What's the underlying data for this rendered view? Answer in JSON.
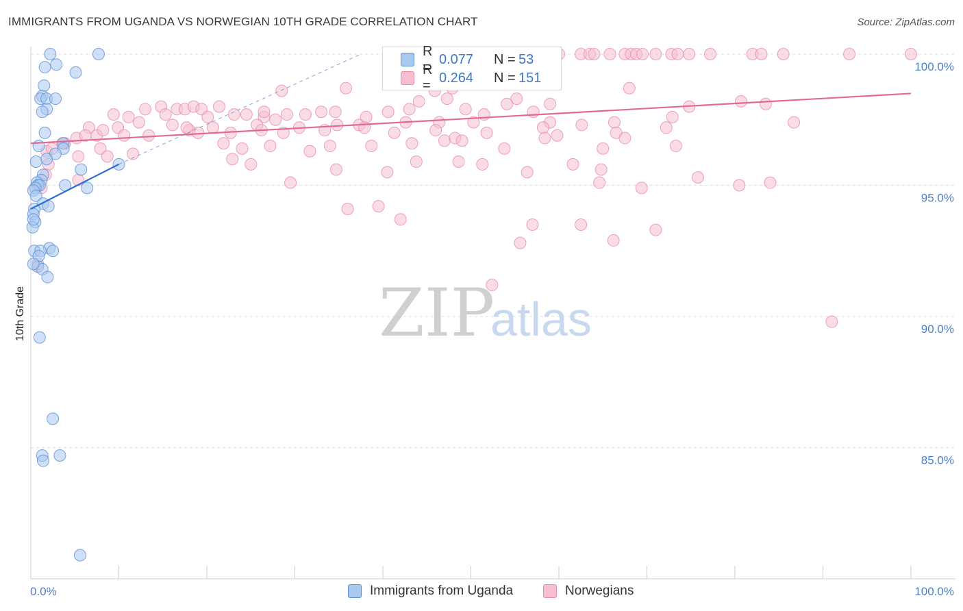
{
  "title": "IMMIGRANTS FROM UGANDA VS NORWEGIAN 10TH GRADE CORRELATION CHART",
  "source": "Source: ZipAtlas.com",
  "watermark": {
    "zip": "ZIP",
    "atlas": "atlas"
  },
  "colors": {
    "uganda_fill": "#a9c8f0",
    "uganda_stroke": "#5b8fd4",
    "uganda_line": "#2a6fd0",
    "norway_fill": "#f6bfd0",
    "norway_stroke": "#e88aaa",
    "norway_line": "#e06a95",
    "tick_text": "#4a7fc9",
    "grid": "#dddddd"
  },
  "legend": {
    "uganda": {
      "r_label": "R = ",
      "r_value": "0.077",
      "n_label": "N = ",
      "n_value": "53"
    },
    "norway": {
      "r_label": "R = ",
      "r_value": "0.264",
      "n_label": "N = ",
      "n_value": "151"
    }
  },
  "bottom_legend": {
    "uganda": "Immigrants from Uganda",
    "norway": "Norwegians"
  },
  "chart_data": {
    "type": "scatter",
    "title": "IMMIGRANTS FROM UGANDA VS NORWEGIAN 10TH GRADE CORRELATION CHART",
    "xlabel": "",
    "ylabel": "10th Grade",
    "xlim": [
      0,
      100
    ],
    "ylim": [
      80.6,
      100.8
    ],
    "x_tick_labels": [
      "0.0%",
      "100.0%"
    ],
    "y_ticks": [
      {
        "value": 100,
        "label": "100.0%"
      },
      {
        "value": 95,
        "label": "95.0%"
      },
      {
        "value": 90,
        "label": "90.0%"
      },
      {
        "value": 85,
        "label": "85.0%"
      }
    ],
    "series": [
      {
        "name": "Immigrants from Uganda",
        "r": 0.077,
        "n": 53,
        "trend": {
          "x": [
            0,
            10
          ],
          "y": [
            94.1,
            95.8
          ]
        },
        "trend_dashed": {
          "x": [
            10,
            37.5
          ],
          "y": [
            95.8,
            100.0
          ]
        },
        "points": [
          [
            2.2,
            100.0
          ],
          [
            7.7,
            100.0
          ],
          [
            2.9,
            99.6
          ],
          [
            1.6,
            99.5
          ],
          [
            5.1,
            99.3
          ],
          [
            1.5,
            98.8
          ],
          [
            1.3,
            98.4
          ],
          [
            1.1,
            98.3
          ],
          [
            1.8,
            98.3
          ],
          [
            2.8,
            98.3
          ],
          [
            1.8,
            97.9
          ],
          [
            1.3,
            97.8
          ],
          [
            1.6,
            97.0
          ],
          [
            3.7,
            96.6
          ],
          [
            3.7,
            96.4
          ],
          [
            0.9,
            96.5
          ],
          [
            2.8,
            96.2
          ],
          [
            1.8,
            96.0
          ],
          [
            0.6,
            95.9
          ],
          [
            5.7,
            95.6
          ],
          [
            1.4,
            95.4
          ],
          [
            10.0,
            95.8
          ],
          [
            1.2,
            95.2
          ],
          [
            0.7,
            95.1
          ],
          [
            0.8,
            95.0
          ],
          [
            1.0,
            95.0
          ],
          [
            0.5,
            94.9
          ],
          [
            0.3,
            94.8
          ],
          [
            3.9,
            95.0
          ],
          [
            6.4,
            94.9
          ],
          [
            0.6,
            94.6
          ],
          [
            1.4,
            94.3
          ],
          [
            2.0,
            94.2
          ],
          [
            0.4,
            94.1
          ],
          [
            0.3,
            93.9
          ],
          [
            0.5,
            93.6
          ],
          [
            0.2,
            93.4
          ],
          [
            0.3,
            93.7
          ],
          [
            2.1,
            92.6
          ],
          [
            0.4,
            92.5
          ],
          [
            1.1,
            92.5
          ],
          [
            0.9,
            92.3
          ],
          [
            2.5,
            92.5
          ],
          [
            0.8,
            91.9
          ],
          [
            1.3,
            91.8
          ],
          [
            1.9,
            91.5
          ],
          [
            1.0,
            89.2
          ],
          [
            2.5,
            86.1
          ],
          [
            1.3,
            84.7
          ],
          [
            1.4,
            84.5
          ],
          [
            3.3,
            84.7
          ],
          [
            5.6,
            80.9
          ],
          [
            0.3,
            92.0
          ]
        ]
      },
      {
        "name": "Norwegians",
        "r": 0.264,
        "n": 151,
        "trend": {
          "x": [
            0,
            100
          ],
          "y": [
            96.6,
            98.5
          ]
        },
        "points": [
          [
            60.0,
            100.0
          ],
          [
            62.5,
            100.0
          ],
          [
            63.5,
            100.0
          ],
          [
            64.0,
            100.0
          ],
          [
            65.8,
            100.0
          ],
          [
            67.5,
            100.0
          ],
          [
            68.2,
            100.0
          ],
          [
            68.8,
            100.0
          ],
          [
            69.5,
            100.0
          ],
          [
            71.0,
            100.0
          ],
          [
            72.8,
            100.0
          ],
          [
            73.5,
            100.0
          ],
          [
            74.8,
            100.0
          ],
          [
            77.2,
            100.0
          ],
          [
            82.0,
            100.0
          ],
          [
            83.0,
            100.0
          ],
          [
            85.5,
            100.0
          ],
          [
            93.0,
            100.0
          ],
          [
            100.0,
            100.0
          ],
          [
            57.7,
            99.1
          ],
          [
            28.5,
            98.6
          ],
          [
            35.8,
            98.7
          ],
          [
            47.9,
            98.7
          ],
          [
            68.0,
            98.7
          ],
          [
            45.9,
            98.6
          ],
          [
            47.3,
            98.3
          ],
          [
            44.1,
            98.2
          ],
          [
            55.2,
            98.3
          ],
          [
            80.7,
            98.2
          ],
          [
            59.0,
            98.1
          ],
          [
            14.8,
            98.0
          ],
          [
            13.0,
            97.9
          ],
          [
            16.6,
            97.9
          ],
          [
            21.4,
            98.0
          ],
          [
            17.5,
            97.9
          ],
          [
            18.5,
            98.0
          ],
          [
            19.4,
            97.9
          ],
          [
            23.1,
            97.7
          ],
          [
            26.5,
            97.6
          ],
          [
            31.2,
            97.7
          ],
          [
            33.0,
            97.8
          ],
          [
            34.6,
            97.8
          ],
          [
            40.6,
            97.8
          ],
          [
            43.0,
            97.9
          ],
          [
            49.4,
            97.9
          ],
          [
            51.5,
            97.7
          ],
          [
            54.1,
            98.1
          ],
          [
            57.1,
            97.8
          ],
          [
            74.8,
            98.0
          ],
          [
            83.5,
            98.1
          ],
          [
            9.4,
            97.7
          ],
          [
            11.1,
            97.6
          ],
          [
            12.3,
            97.4
          ],
          [
            15.3,
            97.7
          ],
          [
            20.1,
            97.6
          ],
          [
            24.5,
            97.7
          ],
          [
            25.7,
            97.3
          ],
          [
            27.8,
            97.5
          ],
          [
            29.1,
            97.7
          ],
          [
            34.8,
            97.3
          ],
          [
            37.3,
            97.3
          ],
          [
            38.1,
            97.6
          ],
          [
            42.6,
            97.4
          ],
          [
            46.4,
            97.4
          ],
          [
            50.3,
            97.4
          ],
          [
            59.0,
            97.4
          ],
          [
            62.6,
            97.3
          ],
          [
            66.3,
            97.4
          ],
          [
            72.9,
            97.6
          ],
          [
            86.7,
            97.4
          ],
          [
            6.6,
            97.2
          ],
          [
            7.5,
            96.9
          ],
          [
            8.2,
            97.1
          ],
          [
            9.9,
            97.2
          ],
          [
            16.1,
            97.3
          ],
          [
            18.0,
            97.1
          ],
          [
            20.7,
            97.2
          ],
          [
            22.7,
            97.0
          ],
          [
            26.2,
            97.1
          ],
          [
            28.7,
            97.0
          ],
          [
            33.4,
            97.1
          ],
          [
            37.9,
            97.2
          ],
          [
            41.3,
            97.0
          ],
          [
            46.0,
            97.1
          ],
          [
            48.2,
            96.8
          ],
          [
            51.8,
            97.0
          ],
          [
            58.2,
            97.2
          ],
          [
            59.8,
            96.9
          ],
          [
            66.5,
            97.0
          ],
          [
            72.2,
            97.2
          ],
          [
            3.9,
            96.6
          ],
          [
            5.2,
            96.8
          ],
          [
            6.2,
            96.9
          ],
          [
            7.9,
            96.4
          ],
          [
            10.6,
            96.9
          ],
          [
            13.4,
            96.9
          ],
          [
            17.7,
            97.2
          ],
          [
            21.9,
            96.6
          ],
          [
            24.0,
            96.4
          ],
          [
            27.2,
            96.5
          ],
          [
            31.7,
            96.3
          ],
          [
            34.0,
            96.5
          ],
          [
            38.7,
            96.5
          ],
          [
            43.3,
            96.6
          ],
          [
            47.0,
            96.7
          ],
          [
            49.0,
            96.7
          ],
          [
            53.8,
            96.4
          ],
          [
            58.4,
            96.8
          ],
          [
            65.0,
            96.4
          ],
          [
            73.3,
            96.5
          ],
          [
            1.8,
            96.3
          ],
          [
            2.4,
            96.4
          ],
          [
            3.6,
            96.6
          ],
          [
            5.4,
            96.1
          ],
          [
            8.7,
            96.1
          ],
          [
            11.6,
            96.2
          ],
          [
            22.9,
            96.0
          ],
          [
            25.0,
            95.8
          ],
          [
            34.7,
            95.6
          ],
          [
            40.5,
            95.5
          ],
          [
            43.8,
            95.9
          ],
          [
            48.6,
            95.9
          ],
          [
            51.3,
            95.8
          ],
          [
            56.4,
            95.5
          ],
          [
            61.6,
            95.8
          ],
          [
            64.8,
            95.6
          ],
          [
            75.8,
            95.3
          ],
          [
            80.5,
            95.0
          ],
          [
            84.0,
            95.1
          ],
          [
            29.5,
            95.1
          ],
          [
            1.2,
            94.9
          ],
          [
            2.0,
            95.8
          ],
          [
            0.8,
            92.0
          ],
          [
            1.7,
            95.4
          ],
          [
            5.4,
            95.2
          ],
          [
            36.0,
            94.1
          ],
          [
            39.5,
            94.2
          ],
          [
            42.0,
            93.7
          ],
          [
            57.0,
            93.5
          ],
          [
            62.5,
            93.5
          ],
          [
            71.0,
            93.3
          ],
          [
            66.2,
            92.9
          ],
          [
            55.6,
            92.8
          ],
          [
            52.4,
            91.2
          ],
          [
            91.0,
            89.8
          ],
          [
            64.6,
            95.1
          ],
          [
            69.4,
            94.9
          ],
          [
            67.5,
            96.8
          ],
          [
            26.5,
            97.8
          ],
          [
            30.5,
            97.2
          ],
          [
            19.0,
            97.0
          ]
        ]
      }
    ]
  }
}
